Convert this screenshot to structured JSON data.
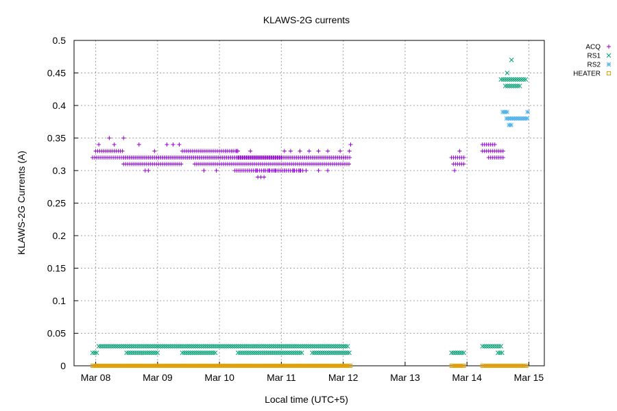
{
  "chart_data": {
    "type": "scatter",
    "title": "KLAWS-2G currents",
    "xlabel": "Local time (UTC+5)",
    "ylabel": "KLAWS-2G Currents (A)",
    "x_unit": "days since Mar 08 00:00",
    "xlim": [
      -0.35,
      7.25
    ],
    "ylim": [
      0,
      0.5
    ],
    "grid": true,
    "legend_position": "top-right",
    "x_ticks": [
      {
        "v": 0,
        "label": "Mar 08"
      },
      {
        "v": 1,
        "label": "Mar 09"
      },
      {
        "v": 2,
        "label": "Mar 10"
      },
      {
        "v": 3,
        "label": "Mar 11"
      },
      {
        "v": 4,
        "label": "Mar 12"
      },
      {
        "v": 5,
        "label": "Mar 13"
      },
      {
        "v": 6,
        "label": "Mar 14"
      },
      {
        "v": 7,
        "label": "Mar 15"
      }
    ],
    "y_ticks": [
      {
        "v": 0,
        "label": "0"
      },
      {
        "v": 0.05,
        "label": "0.05"
      },
      {
        "v": 0.1,
        "label": "0.1"
      },
      {
        "v": 0.15,
        "label": "0.15"
      },
      {
        "v": 0.2,
        "label": "0.2"
      },
      {
        "v": 0.25,
        "label": "0.25"
      },
      {
        "v": 0.3,
        "label": "0.3"
      },
      {
        "v": 0.35,
        "label": "0.35"
      },
      {
        "v": 0.4,
        "label": "0.4"
      },
      {
        "v": 0.45,
        "label": "0.45"
      },
      {
        "v": 0.5,
        "label": "0.5"
      }
    ],
    "series": [
      {
        "name": "ACQ",
        "marker": "plus",
        "color": "#9400d3",
        "runs": [
          {
            "x0": -0.05,
            "x1": 4.12,
            "y": 0.32
          },
          {
            "x0": 0.45,
            "x1": 4.05,
            "y": 0.32
          },
          {
            "x0": 0.0,
            "x1": 0.45,
            "y": 0.33
          },
          {
            "x0": 0.45,
            "x1": 1.4,
            "y": 0.31
          },
          {
            "x0": 1.4,
            "x1": 2.3,
            "y": 0.33
          },
          {
            "x0": 1.6,
            "x1": 4.1,
            "y": 0.31
          },
          {
            "x0": 2.3,
            "x1": 3.0,
            "y": 0.32
          },
          {
            "x0": 2.25,
            "x1": 3.35,
            "y": 0.3
          },
          {
            "x0": 5.75,
            "x1": 5.95,
            "y": 0.32
          },
          {
            "x0": 5.78,
            "x1": 5.95,
            "y": 0.31
          },
          {
            "x0": 6.25,
            "x1": 6.6,
            "y": 0.33
          },
          {
            "x0": 6.25,
            "x1": 6.45,
            "y": 0.34
          },
          {
            "x0": 6.35,
            "x1": 6.6,
            "y": 0.32
          }
        ],
        "points": [
          {
            "x": 0.22,
            "y": 0.35
          },
          {
            "x": 0.45,
            "y": 0.35
          },
          {
            "x": 0.05,
            "y": 0.34
          },
          {
            "x": 0.3,
            "y": 0.34
          },
          {
            "x": 0.7,
            "y": 0.34
          },
          {
            "x": 0.8,
            "y": 0.3
          },
          {
            "x": 0.85,
            "y": 0.3
          },
          {
            "x": 0.95,
            "y": 0.33
          },
          {
            "x": 1.15,
            "y": 0.34
          },
          {
            "x": 1.25,
            "y": 0.34
          },
          {
            "x": 1.35,
            "y": 0.34
          },
          {
            "x": 1.7,
            "y": 0.33
          },
          {
            "x": 1.75,
            "y": 0.3
          },
          {
            "x": 1.95,
            "y": 0.3
          },
          {
            "x": 2.1,
            "y": 0.33
          },
          {
            "x": 2.5,
            "y": 0.33
          },
          {
            "x": 2.6,
            "y": 0.3
          },
          {
            "x": 2.72,
            "y": 0.3
          },
          {
            "x": 2.8,
            "y": 0.3
          },
          {
            "x": 2.85,
            "y": 0.3
          },
          {
            "x": 2.9,
            "y": 0.3
          },
          {
            "x": 3.05,
            "y": 0.3
          },
          {
            "x": 3.2,
            "y": 0.3
          },
          {
            "x": 3.3,
            "y": 0.3
          },
          {
            "x": 3.4,
            "y": 0.3
          },
          {
            "x": 3.6,
            "y": 0.3
          },
          {
            "x": 3.75,
            "y": 0.3
          },
          {
            "x": 2.62,
            "y": 0.29
          },
          {
            "x": 2.67,
            "y": 0.29
          },
          {
            "x": 2.72,
            "y": 0.29
          },
          {
            "x": 2.2,
            "y": 0.33
          },
          {
            "x": 2.28,
            "y": 0.33
          },
          {
            "x": 3.05,
            "y": 0.33
          },
          {
            "x": 3.15,
            "y": 0.33
          },
          {
            "x": 3.3,
            "y": 0.33
          },
          {
            "x": 3.45,
            "y": 0.33
          },
          {
            "x": 3.6,
            "y": 0.33
          },
          {
            "x": 3.75,
            "y": 0.33
          },
          {
            "x": 3.95,
            "y": 0.33
          },
          {
            "x": 4.12,
            "y": 0.34
          },
          {
            "x": 4.1,
            "y": 0.33
          },
          {
            "x": 5.88,
            "y": 0.33
          },
          {
            "x": 5.8,
            "y": 0.3
          }
        ]
      },
      {
        "name": "RS1",
        "marker": "cross",
        "color": "#009e73",
        "runs": [
          {
            "x0": 0.05,
            "x1": 4.1,
            "y": 0.03
          },
          {
            "x0": -0.05,
            "x1": 0.02,
            "y": 0.02
          },
          {
            "x0": 0.5,
            "x1": 1.0,
            "y": 0.02
          },
          {
            "x0": 1.4,
            "x1": 1.95,
            "y": 0.02
          },
          {
            "x0": 2.3,
            "x1": 3.35,
            "y": 0.02
          },
          {
            "x0": 3.5,
            "x1": 4.1,
            "y": 0.02
          },
          {
            "x0": 5.75,
            "x1": 5.95,
            "y": 0.02
          },
          {
            "x0": 6.25,
            "x1": 6.55,
            "y": 0.03
          },
          {
            "x0": 6.5,
            "x1": 6.58,
            "y": 0.02
          },
          {
            "x0": 6.55,
            "x1": 6.98,
            "y": 0.44
          },
          {
            "x0": 6.62,
            "x1": 6.88,
            "y": 0.43
          }
        ],
        "points": [
          {
            "x": 6.65,
            "y": 0.45
          },
          {
            "x": 6.72,
            "y": 0.47
          }
        ]
      },
      {
        "name": "RS2",
        "marker": "star",
        "color": "#56b4e9",
        "runs": [
          {
            "x0": 6.58,
            "x1": 6.65,
            "y": 0.39
          },
          {
            "x0": 6.64,
            "x1": 6.98,
            "y": 0.38
          },
          {
            "x0": 6.68,
            "x1": 6.73,
            "y": 0.37
          }
        ],
        "points": [
          {
            "x": 6.98,
            "y": 0.39
          }
        ]
      },
      {
        "name": "HEATER",
        "marker": "square",
        "color": "#e69f00",
        "runs": [
          {
            "x0": -0.05,
            "x1": 4.12,
            "y": 0.0
          },
          {
            "x0": 5.75,
            "x1": 5.97,
            "y": 0.0
          },
          {
            "x0": 6.25,
            "x1": 6.98,
            "y": 0.0
          }
        ],
        "points": []
      }
    ]
  }
}
